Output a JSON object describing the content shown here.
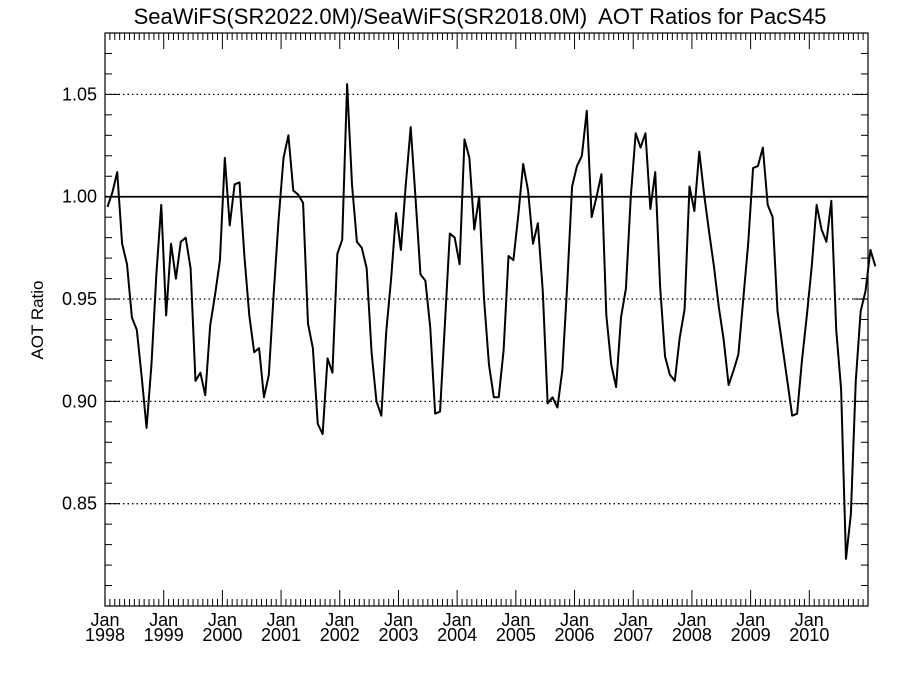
{
  "chart_data": {
    "type": "line",
    "title": "SeaWiFS(SR2022.0M)/SeaWiFS(SR2018.0M)  AOT Ratios for PacS45",
    "xlabel": "",
    "ylabel": "AOT Ratio",
    "x_start": "1998-01",
    "x_end": "2010-12",
    "ylim": [
      0.8,
      1.08
    ],
    "yticks": [
      {
        "value": 0.85,
        "label": "0.85"
      },
      {
        "value": 0.9,
        "label": "0.90"
      },
      {
        "value": 0.95,
        "label": "0.95"
      },
      {
        "value": 1.0,
        "label": "1.00"
      },
      {
        "value": 1.05,
        "label": "1.05"
      }
    ],
    "xticks": [
      {
        "date": "1998-01",
        "month": "Jan",
        "year": "1998"
      },
      {
        "date": "1999-01",
        "month": "Jan",
        "year": "1999"
      },
      {
        "date": "2000-01",
        "month": "Jan",
        "year": "2000"
      },
      {
        "date": "2001-01",
        "month": "Jan",
        "year": "2001"
      },
      {
        "date": "2002-01",
        "month": "Jan",
        "year": "2002"
      },
      {
        "date": "2003-01",
        "month": "Jan",
        "year": "2003"
      },
      {
        "date": "2004-01",
        "month": "Jan",
        "year": "2004"
      },
      {
        "date": "2005-01",
        "month": "Jan",
        "year": "2005"
      },
      {
        "date": "2006-01",
        "month": "Jan",
        "year": "2006"
      },
      {
        "date": "2007-01",
        "month": "Jan",
        "year": "2007"
      },
      {
        "date": "2008-01",
        "month": "Jan",
        "year": "2008"
      },
      {
        "date": "2009-01",
        "month": "Jan",
        "year": "2009"
      },
      {
        "date": "2010-01",
        "month": "Jan",
        "year": "2010"
      }
    ],
    "grid": "horizontal dotted at y ticks",
    "reference_line": 1.0,
    "series": [
      {
        "values": [
          0.995,
          1.002,
          1.012,
          0.977,
          0.967,
          0.941,
          0.935,
          0.912,
          0.887,
          0.918,
          0.962,
          0.996,
          0.942,
          0.977,
          0.96,
          0.978,
          0.98,
          0.965,
          0.91,
          0.914,
          0.903,
          0.937,
          0.952,
          0.969,
          1.019,
          0.986,
          1.006,
          1.007,
          0.971,
          0.942,
          0.924,
          0.926,
          0.902,
          0.913,
          0.953,
          0.989,
          1.019,
          1.03,
          1.003,
          1.001,
          0.997,
          0.938,
          0.926,
          0.889,
          0.884,
          0.921,
          0.914,
          0.972,
          0.979,
          1.055,
          1.006,
          0.978,
          0.975,
          0.965,
          0.924,
          0.9,
          0.893,
          0.934,
          0.96,
          0.992,
          0.974,
          1.006,
          1.034,
          0.999,
          0.962,
          0.959,
          0.936,
          0.894,
          0.895,
          0.938,
          0.982,
          0.98,
          0.967,
          1.028,
          1.019,
          0.984,
          1.0,
          0.95,
          0.918,
          0.902,
          0.902,
          0.925,
          0.971,
          0.969,
          0.991,
          1.016,
          1.003,
          0.977,
          0.987,
          0.954,
          0.899,
          0.902,
          0.897,
          0.915,
          0.957,
          1.005,
          1.015,
          1.02,
          1.042,
          0.99,
          1.0,
          1.011,
          0.942,
          0.918,
          0.907,
          0.941,
          0.955,
          1.0,
          1.031,
          1.024,
          1.031,
          0.994,
          1.012,
          0.956,
          0.922,
          0.913,
          0.91,
          0.931,
          0.945,
          1.005,
          0.993,
          1.022,
          1.001,
          0.983,
          0.966,
          0.946,
          0.93,
          0.908,
          0.915,
          0.923,
          0.95,
          0.977,
          1.014,
          1.015,
          1.024,
          0.996,
          0.99,
          0.944,
          0.927,
          0.91,
          0.893,
          0.894,
          0.92,
          0.942,
          0.966,
          0.996,
          0.984,
          0.978,
          0.998,
          0.935,
          0.906,
          0.823,
          0.845,
          0.91,
          0.944,
          0.954,
          0.974,
          0.966
        ]
      }
    ]
  }
}
